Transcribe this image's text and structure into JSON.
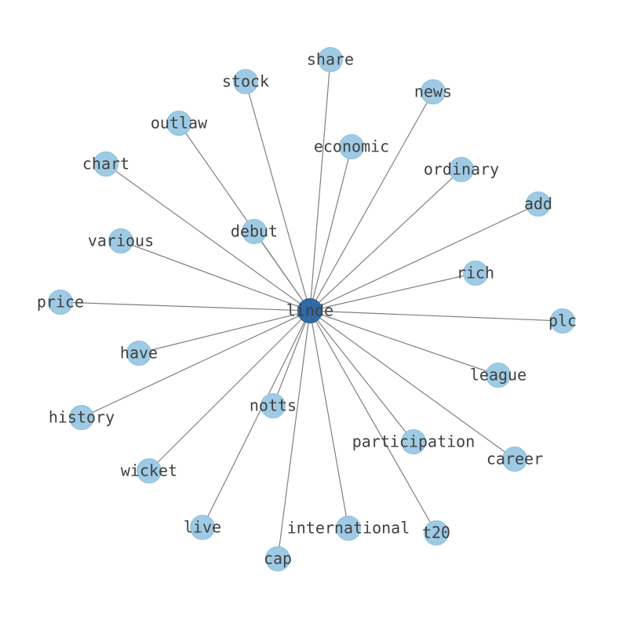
{
  "graph": {
    "center": "linde",
    "nodes": [
      "linde",
      "share",
      "stock",
      "news",
      "outlaw",
      "economic",
      "chart",
      "ordinary",
      "add",
      "debut",
      "various",
      "rich",
      "price",
      "plc",
      "have",
      "league",
      "history",
      "notts",
      "participation",
      "career",
      "wicket",
      "live",
      "international",
      "t20",
      "cap"
    ],
    "edges": [
      [
        "linde",
        "share"
      ],
      [
        "linde",
        "stock"
      ],
      [
        "linde",
        "news"
      ],
      [
        "linde",
        "outlaw"
      ],
      [
        "linde",
        "economic"
      ],
      [
        "linde",
        "chart"
      ],
      [
        "linde",
        "ordinary"
      ],
      [
        "linde",
        "add"
      ],
      [
        "linde",
        "debut"
      ],
      [
        "linde",
        "various"
      ],
      [
        "linde",
        "rich"
      ],
      [
        "linde",
        "price"
      ],
      [
        "linde",
        "plc"
      ],
      [
        "linde",
        "have"
      ],
      [
        "linde",
        "league"
      ],
      [
        "linde",
        "history"
      ],
      [
        "linde",
        "notts"
      ],
      [
        "linde",
        "participation"
      ],
      [
        "linde",
        "career"
      ],
      [
        "linde",
        "wicket"
      ],
      [
        "linde",
        "live"
      ],
      [
        "linde",
        "international"
      ],
      [
        "linde",
        "t20"
      ],
      [
        "linde",
        "cap"
      ]
    ],
    "colors": {
      "center_node": "#2f6aa6",
      "node": "#9ecae4",
      "edge": "#808080",
      "label": "#404040"
    }
  }
}
